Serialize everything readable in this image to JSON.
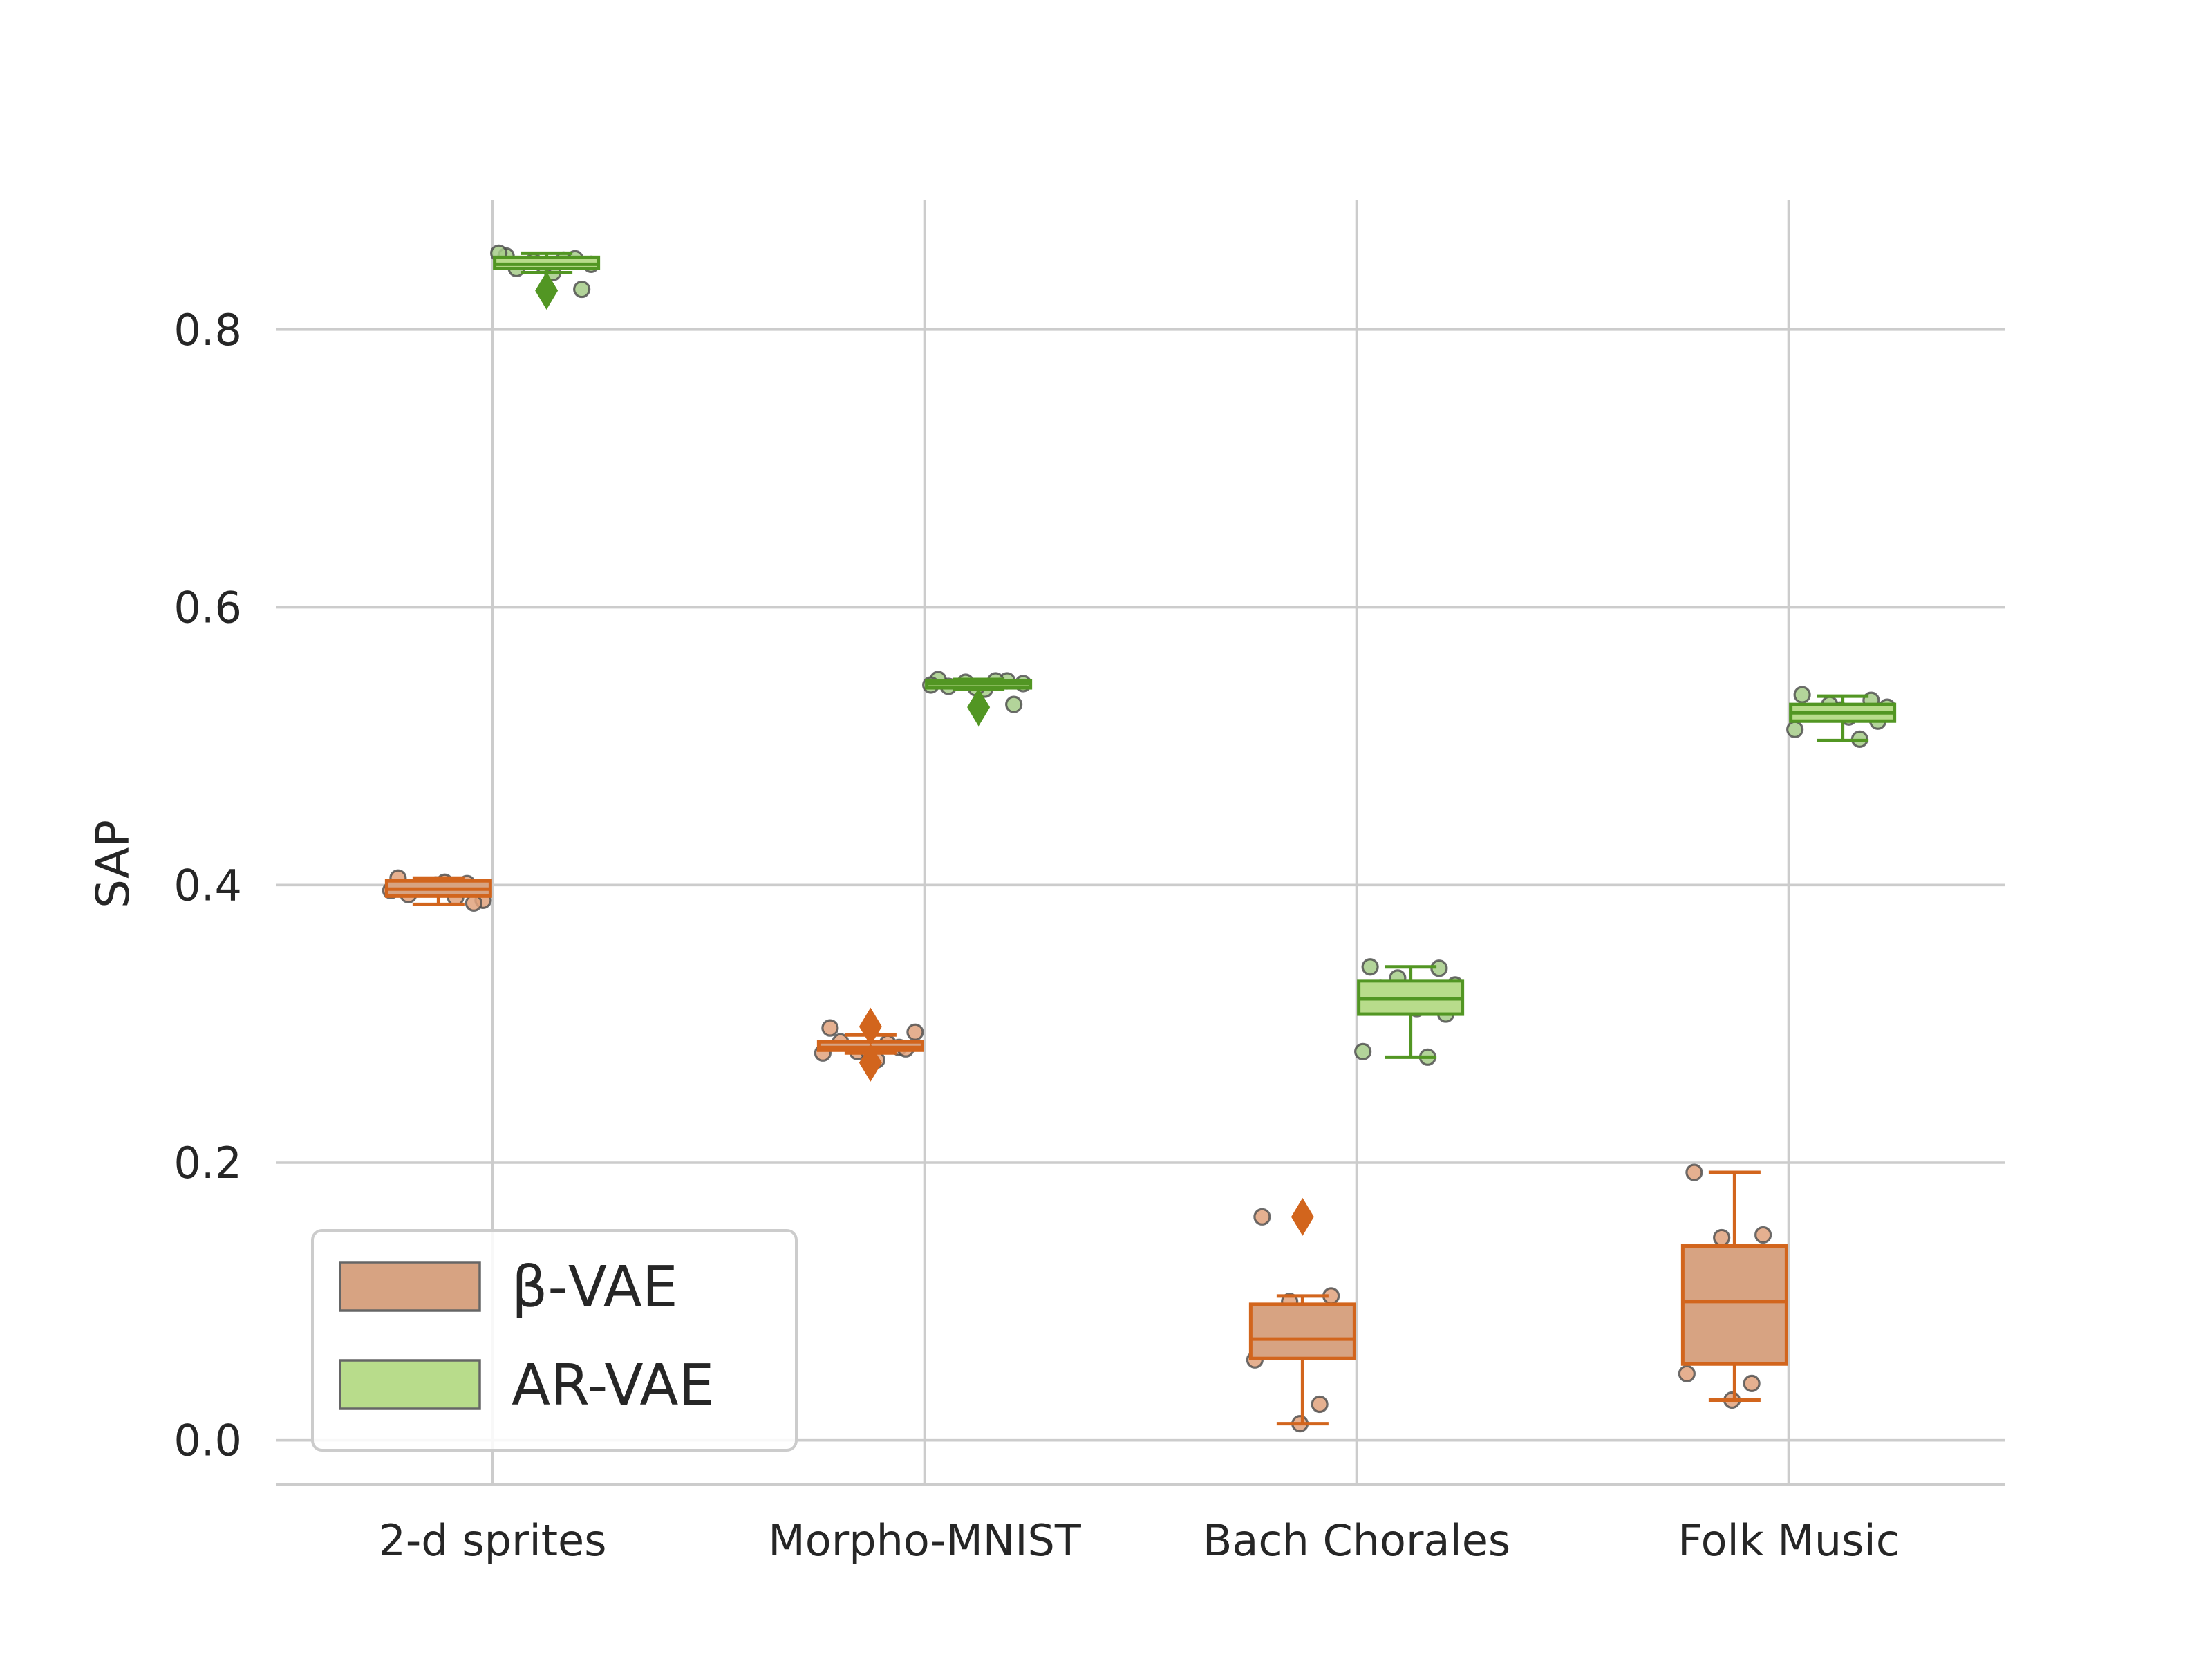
{
  "chart_data": {
    "type": "box",
    "ylabel": "SAP",
    "ylim": [
      -0.032,
      0.893
    ],
    "yticks": [
      "0.0",
      "0.2",
      "0.4",
      "0.6",
      "0.8"
    ],
    "grid": true,
    "legend_position": "bottom-left",
    "categories": [
      "2-d sprites",
      "Morpho-MNIST",
      "Bach Chorales",
      "Folk Music"
    ],
    "series": [
      {
        "name": "β-VAE",
        "color": "#d2651d",
        "fill": "#d7a382",
        "point_fill": "#e0a27c",
        "boxes": [
          {
            "whisker_low": 0.386,
            "q1": 0.392,
            "median": 0.397,
            "q3": 0.403,
            "whisker_high": 0.405,
            "outliers": [],
            "points": [
              0.405,
              0.401,
              0.398,
              0.389,
              0.393,
              0.402,
              0.387,
              0.396,
              0.391,
              0.4
            ]
          },
          {
            "whisker_low": 0.279,
            "q1": 0.281,
            "median": 0.283,
            "q3": 0.287,
            "whisker_high": 0.292,
            "outliers": [
              0.298,
              0.272
            ],
            "points": [
              0.297,
              0.283,
              0.28,
              0.294,
              0.287,
              0.274,
              0.282,
              0.279,
              0.286,
              0.281
            ]
          },
          {
            "whisker_low": 0.012,
            "q1": 0.059,
            "median": 0.073,
            "q3": 0.098,
            "whisker_high": 0.104,
            "outliers": [
              0.161
            ],
            "points": [
              0.161,
              0.104,
              0.1,
              0.086,
              0.073,
              0.071,
              0.064,
              0.058,
              0.026,
              0.012
            ]
          },
          {
            "whisker_low": 0.029,
            "q1": 0.055,
            "median": 0.1,
            "q3": 0.14,
            "whisker_high": 0.193,
            "outliers": [],
            "points": [
              0.193,
              0.148,
              0.146,
              0.122,
              0.118,
              0.081,
              0.079,
              0.048,
              0.041,
              0.029
            ]
          }
        ]
      },
      {
        "name": "AR-VAE",
        "color": "#529623",
        "fill": "#b8dc8b",
        "point_fill": "#a6cc88",
        "boxes": [
          {
            "whisker_low": 0.841,
            "q1": 0.844,
            "median": 0.847,
            "q3": 0.852,
            "whisker_high": 0.855,
            "outliers": [
              0.828
            ],
            "points": [
              0.853,
              0.851,
              0.849,
              0.847,
              0.844,
              0.841,
              0.829,
              0.855,
              0.85,
              0.846
            ]
          },
          {
            "whisker_low": 0.541,
            "q1": 0.542,
            "median": 0.545,
            "q3": 0.547,
            "whisker_high": 0.548,
            "outliers": [
              0.528
            ],
            "points": [
              0.548,
              0.547,
              0.546,
              0.545,
              0.543,
              0.541,
              0.53,
              0.544,
              0.547,
              0.542
            ]
          },
          {
            "whisker_low": 0.276,
            "q1": 0.307,
            "median": 0.318,
            "q3": 0.331,
            "whisker_high": 0.341,
            "outliers": [],
            "points": [
              0.341,
              0.34,
              0.333,
              0.328,
              0.326,
              0.311,
              0.307,
              0.28,
              0.276,
              0.32
            ]
          },
          {
            "whisker_low": 0.504,
            "q1": 0.518,
            "median": 0.524,
            "q3": 0.53,
            "whisker_high": 0.536,
            "outliers": [],
            "points": [
              0.537,
              0.533,
              0.53,
              0.528,
              0.524,
              0.521,
              0.518,
              0.512,
              0.505,
              0.526
            ]
          }
        ]
      }
    ]
  }
}
